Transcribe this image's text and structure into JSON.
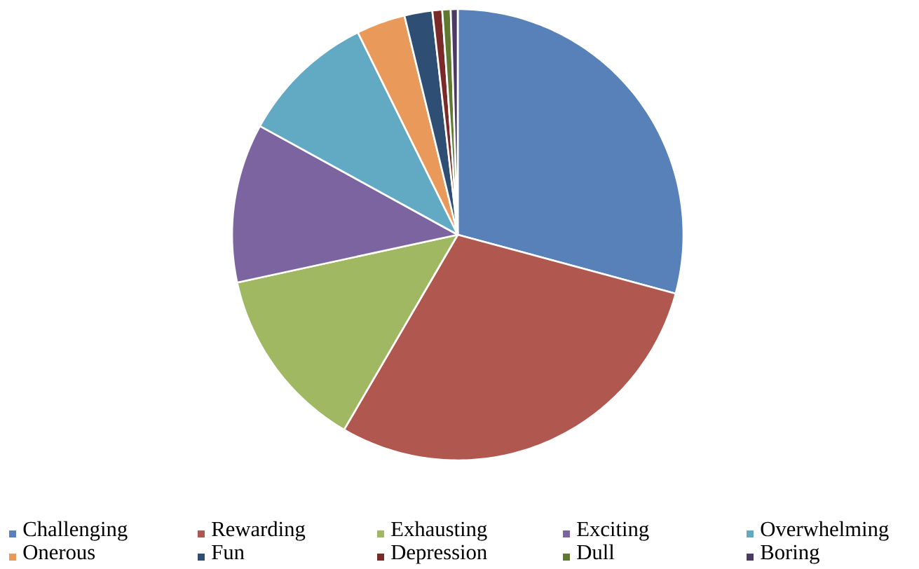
{
  "chart_data": {
    "type": "pie",
    "categories": [
      "Challenging",
      "Rewarding",
      "Exhausting",
      "Exciting",
      "Overwhelming",
      "Onerous",
      "Fun",
      "Depression",
      "Dull",
      "Boring"
    ],
    "values": [
      29.2,
      29.2,
      13.2,
      11.4,
      9.7,
      3.5,
      2.0,
      0.7,
      0.6,
      0.5
    ],
    "colors": [
      "#5880b9",
      "#b0574f",
      "#a0b862",
      "#7c64a0",
      "#62a9c4",
      "#e9995a",
      "#2f4e74",
      "#7a2a29",
      "#5f7a30",
      "#4b3b63"
    ],
    "legend": "bottom"
  }
}
